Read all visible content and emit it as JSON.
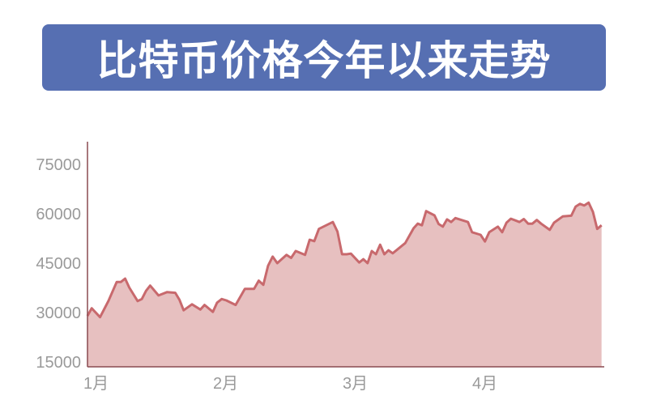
{
  "chart_data": {
    "type": "area",
    "title": "比特币价格今年以来走势",
    "xlabel": "",
    "ylabel": "",
    "ylim": [
      13500,
      82000
    ],
    "yticks": [
      "15000",
      "30000",
      "45000",
      "60000",
      "75000"
    ],
    "xticks": [
      "1月",
      "2月",
      "3月",
      "4月"
    ],
    "grid": false,
    "colors": {
      "title_bg": "#566fb2",
      "fill": "#e7c0c0",
      "line": "#c8696d",
      "axis": "#8a4a50",
      "tick_text": "#9a9a9a"
    },
    "points": [
      [
        "1/1",
        29000
      ],
      [
        "1/2",
        31300
      ],
      [
        "1/4",
        28600
      ],
      [
        "1/6",
        33500
      ],
      [
        "1/8",
        39300
      ],
      [
        "1/9",
        39300
      ],
      [
        "1/10",
        40300
      ],
      [
        "1/11",
        37600
      ],
      [
        "1/13",
        33500
      ],
      [
        "1/14",
        34100
      ],
      [
        "1/15",
        36600
      ],
      [
        "1/16",
        38200
      ],
      [
        "1/18",
        35200
      ],
      [
        "1/20",
        36200
      ],
      [
        "1/22",
        36000
      ],
      [
        "1/23",
        33900
      ],
      [
        "1/24",
        30700
      ],
      [
        "1/26",
        32500
      ],
      [
        "1/28",
        30900
      ],
      [
        "1/29",
        32300
      ],
      [
        "1/31",
        30200
      ],
      [
        "2/1",
        33000
      ],
      [
        "2/2",
        34100
      ],
      [
        "2/3",
        33700
      ],
      [
        "2/5",
        32300
      ],
      [
        "2/7",
        37200
      ],
      [
        "2/9",
        37200
      ],
      [
        "2/10",
        39700
      ],
      [
        "2/11",
        38400
      ],
      [
        "2/12",
        44200
      ],
      [
        "2/13",
        47000
      ],
      [
        "2/14",
        45000
      ],
      [
        "2/16",
        47500
      ],
      [
        "2/17",
        46600
      ],
      [
        "2/18",
        48700
      ],
      [
        "2/20",
        47500
      ],
      [
        "2/21",
        52100
      ],
      [
        "2/22",
        51700
      ],
      [
        "2/23",
        55400
      ],
      [
        "2/26",
        57500
      ],
      [
        "2/27",
        54600
      ],
      [
        "2/28",
        47700
      ],
      [
        "3/1",
        47700
      ],
      [
        "3/2",
        47900
      ],
      [
        "3/4",
        45200
      ],
      [
        "3/5",
        46200
      ],
      [
        "3/6",
        45000
      ],
      [
        "3/7",
        48700
      ],
      [
        "3/8",
        47700
      ],
      [
        "3/9",
        50600
      ],
      [
        "3/10",
        47700
      ],
      [
        "3/11",
        48900
      ],
      [
        "3/12",
        48000
      ],
      [
        "3/15",
        51100
      ],
      [
        "3/17",
        55600
      ],
      [
        "3/18",
        57000
      ],
      [
        "3/19",
        56500
      ],
      [
        "3/20",
        60800
      ],
      [
        "3/22",
        59500
      ],
      [
        "3/23",
        56900
      ],
      [
        "3/24",
        56100
      ],
      [
        "3/25",
        58300
      ],
      [
        "3/26",
        57500
      ],
      [
        "3/27",
        58700
      ],
      [
        "3/30",
        57500
      ],
      [
        "3/31",
        54400
      ],
      [
        "4/2",
        53600
      ],
      [
        "4/3",
        51600
      ],
      [
        "4/4",
        54400
      ],
      [
        "4/6",
        56100
      ],
      [
        "4/7",
        54400
      ],
      [
        "4/8",
        57300
      ],
      [
        "4/9",
        58500
      ],
      [
        "4/11",
        57500
      ],
      [
        "4/12",
        58400
      ],
      [
        "4/13",
        57000
      ],
      [
        "4/14",
        57000
      ],
      [
        "4/15",
        58100
      ],
      [
        "4/16",
        57000
      ],
      [
        "4/18",
        55100
      ],
      [
        "4/19",
        57300
      ],
      [
        "4/21",
        59200
      ],
      [
        "4/23",
        59400
      ],
      [
        "4/24",
        62200
      ],
      [
        "4/25",
        63000
      ],
      [
        "4/26",
        62500
      ],
      [
        "4/27",
        63400
      ],
      [
        "4/28",
        60600
      ],
      [
        "4/29",
        55400
      ],
      [
        "4/30",
        56500
      ]
    ]
  }
}
